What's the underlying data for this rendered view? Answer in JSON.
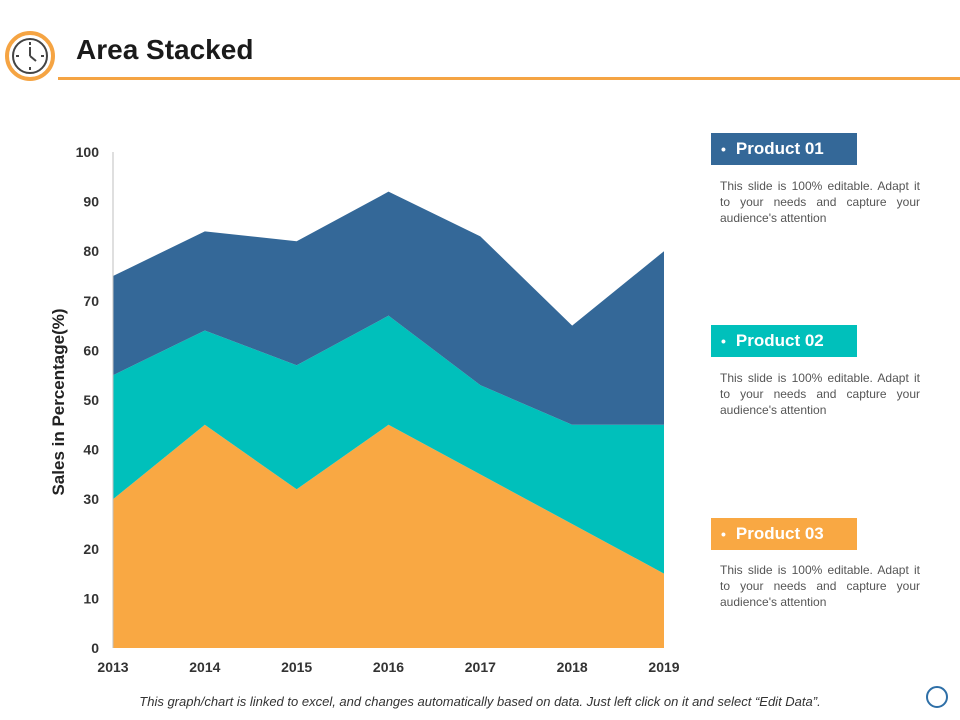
{
  "header": {
    "title": "Area Stacked",
    "icon": "clock-icon"
  },
  "chart_data": {
    "type": "area",
    "stacked": true,
    "title": "Area Stacked",
    "categories": [
      "2013",
      "2014",
      "2015",
      "2016",
      "2017",
      "2018",
      "2019"
    ],
    "series": [
      {
        "name": "Product 03",
        "color": "#f9a843",
        "values": [
          30,
          45,
          32,
          45,
          35,
          25,
          15
        ]
      },
      {
        "name": "Product 02",
        "color": "#00c0bb",
        "values": [
          25,
          19,
          25,
          22,
          18,
          20,
          30
        ]
      },
      {
        "name": "Product 01",
        "color": "#346898",
        "values": [
          20,
          20,
          25,
          25,
          30,
          20,
          35
        ]
      }
    ],
    "yticks": [
      "0",
      "10",
      "20",
      "30",
      "40",
      "50",
      "60",
      "70",
      "80",
      "90",
      "100"
    ],
    "ylim": [
      0,
      100
    ],
    "xlabel": "",
    "ylabel": "Sales in Percentage(%)",
    "grid": false,
    "legend_placement": "right"
  },
  "legend": [
    {
      "bullet": "•",
      "label": "Product 01",
      "color": "#346898",
      "description": "This slide is 100% editable. Adapt it to your needs and capture your audience's attention"
    },
    {
      "bullet": "•",
      "label": "Product 02",
      "color": "#00c0bb",
      "description": "This slide is 100% editable. Adapt it to your needs and capture your audience's attention"
    },
    {
      "bullet": "•",
      "label": "Product 03",
      "color": "#f9a843",
      "description": "This slide is 100% editable. Adapt it to your needs and capture your audience's attention"
    }
  ],
  "footer": {
    "note": "This graph/chart is linked to excel, and changes automatically based on data. Just left click on it and select “Edit Data”."
  }
}
